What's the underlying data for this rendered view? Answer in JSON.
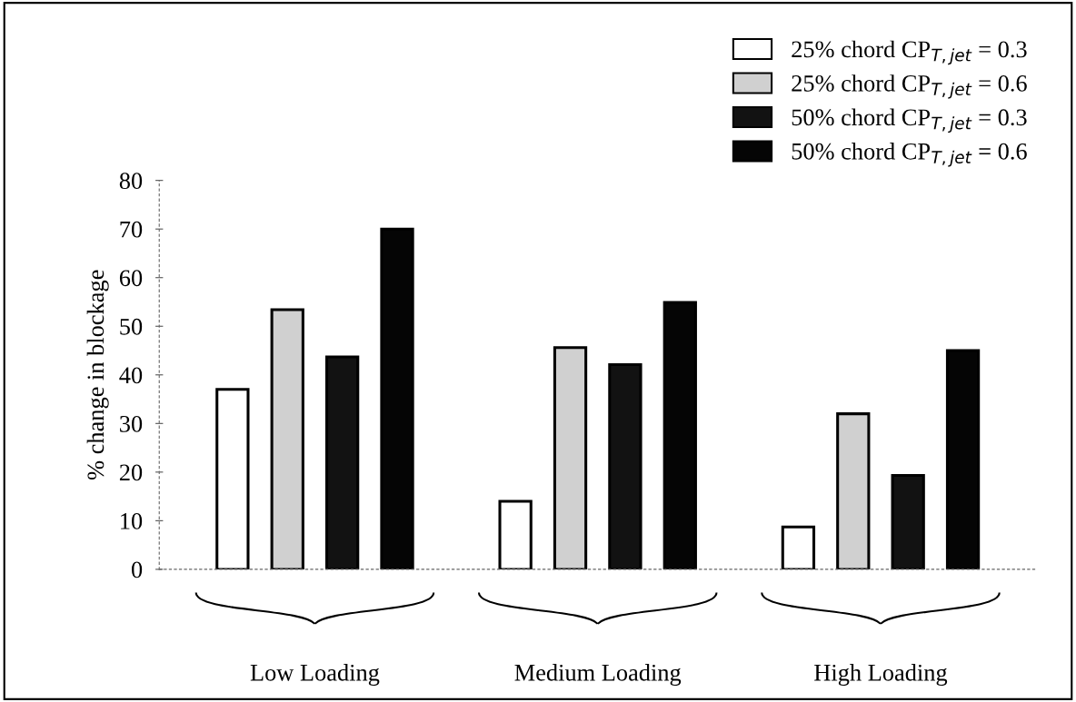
{
  "chart_data": {
    "type": "bar",
    "ylabel": "% change in blockage",
    "categories": [
      "Low Loading",
      "Medium Loading",
      "High Loading"
    ],
    "series": [
      {
        "name": "25% chord CP$_{T,jet}$ = 0.3",
        "color": "#ffffff",
        "values": [
          37.0,
          14.0,
          8.7
        ]
      },
      {
        "name": "25% chord CP$_{T,jet}$ = 0.6",
        "color": "#d0d0d0",
        "values": [
          53.4,
          45.6,
          32.0
        ]
      },
      {
        "name": "50% chord CP$_{T,jet}$ = 0.3",
        "color": "#121212",
        "values": [
          43.7,
          42.1,
          19.3
        ]
      },
      {
        "name": "50% chord CP$_{T,jet}$ = 0.6",
        "color": "#050505",
        "values": [
          70.0,
          54.9,
          45.0
        ]
      }
    ],
    "ylim": [
      0,
      80
    ],
    "yticks": [
      0,
      10,
      20,
      30,
      40,
      50,
      60,
      70,
      80
    ],
    "grid": false,
    "legend": "top right"
  }
}
